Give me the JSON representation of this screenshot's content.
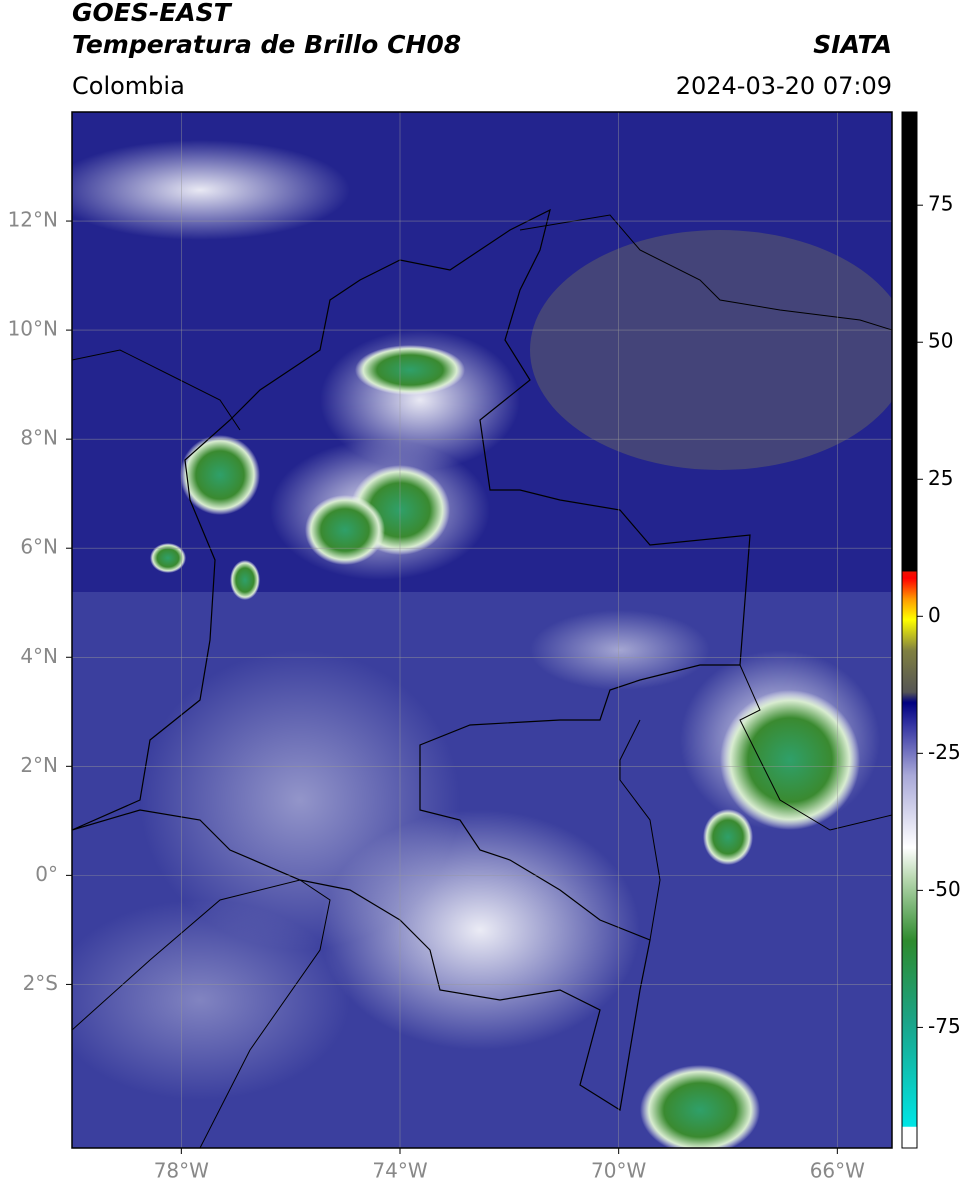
{
  "header": {
    "title": "GOES-EAST",
    "subtitle": "Temperatura de Brillo CH08",
    "region": "Colombia",
    "source": "SIATA",
    "datetime": "2024-03-20 07:09"
  },
  "map": {
    "xlim": [
      -80,
      -65
    ],
    "ylim": [
      -5,
      14
    ],
    "xticks": [
      {
        "value": -78,
        "label": "78°W"
      },
      {
        "value": -74,
        "label": "74°W"
      },
      {
        "value": -70,
        "label": "70°W"
      },
      {
        "value": -66,
        "label": "66°W"
      }
    ],
    "yticks": [
      {
        "value": 12,
        "label": "12°N"
      },
      {
        "value": 10,
        "label": "10°N"
      },
      {
        "value": 8,
        "label": "8°N"
      },
      {
        "value": 6,
        "label": "6°N"
      },
      {
        "value": 4,
        "label": "4°N"
      },
      {
        "value": 2,
        "label": "2°N"
      },
      {
        "value": 0,
        "label": "0°"
      },
      {
        "value": -2,
        "label": "2°S"
      }
    ],
    "grid": true
  },
  "colorbar": {
    "lim": [
      -97,
      92
    ],
    "ticks": [
      75,
      50,
      25,
      0,
      -25,
      -50,
      -75
    ]
  }
}
